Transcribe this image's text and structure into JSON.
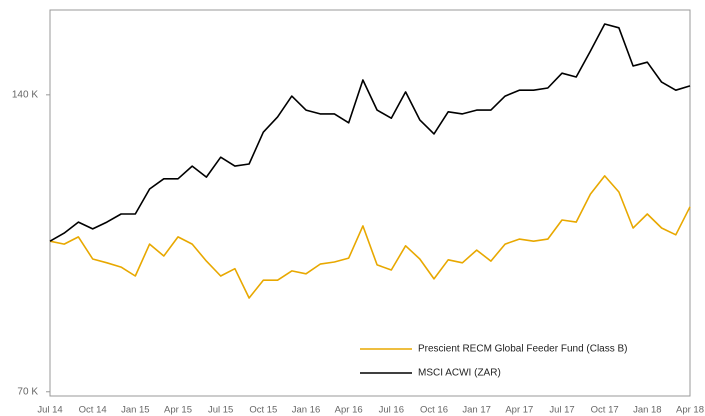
{
  "chart_data": {
    "type": "line",
    "categories": [
      "Jul 14",
      null,
      null,
      "Oct 14",
      null,
      null,
      "Jan 15",
      null,
      null,
      "Apr 15",
      null,
      null,
      "Jul 15",
      null,
      null,
      "Oct 15",
      null,
      null,
      "Jan 16",
      null,
      null,
      "Apr 16",
      null,
      null,
      "Jul 16",
      null,
      null,
      "Oct 16",
      null,
      null,
      "Jan 17",
      null,
      null,
      "Apr 17",
      null,
      null,
      "Jul 17",
      null,
      null,
      "Oct 17",
      null,
      null,
      "Jan 18",
      null,
      null,
      "Apr 18"
    ],
    "series": [
      {
        "name": "Prescient RECM Global Feeder Fund (Class B)",
        "color": "#e8a800",
        "values": [
          105500,
          104800,
          106500,
          101300,
          100400,
          99400,
          97300,
          104800,
          102000,
          106500,
          104800,
          100800,
          97300,
          99000,
          92100,
          96300,
          96300,
          98500,
          97800,
          100100,
          100600,
          101500,
          109100,
          99900,
          98700,
          104400,
          101300,
          96600,
          101100,
          100400,
          103400,
          100800,
          104800,
          106000,
          105500,
          106000,
          110500,
          110000,
          116600,
          120900,
          117100,
          108600,
          111900,
          108600,
          107000,
          113600
        ]
      },
      {
        "name": "MSCI ACWI (ZAR)",
        "color": "#000000",
        "values": [
          105500,
          107400,
          110000,
          108400,
          110000,
          111900,
          111900,
          117800,
          120200,
          120200,
          123200,
          120600,
          125300,
          123200,
          123700,
          131200,
          134800,
          139700,
          136400,
          135500,
          135500,
          133400,
          143500,
          136400,
          134500,
          140700,
          134100,
          130800,
          136000,
          135500,
          136400,
          136400,
          139700,
          141100,
          141100,
          141600,
          145100,
          144200,
          150300,
          156700,
          155800,
          146800,
          147700,
          143000,
          141100,
          142100
        ]
      }
    ],
    "ylim": [
      69000,
      160000
    ],
    "yticks": [
      {
        "value": 70000,
        "label": "70 K"
      },
      {
        "value": 140000,
        "label": "140 K"
      }
    ],
    "grid": false,
    "legend": "lower right"
  }
}
